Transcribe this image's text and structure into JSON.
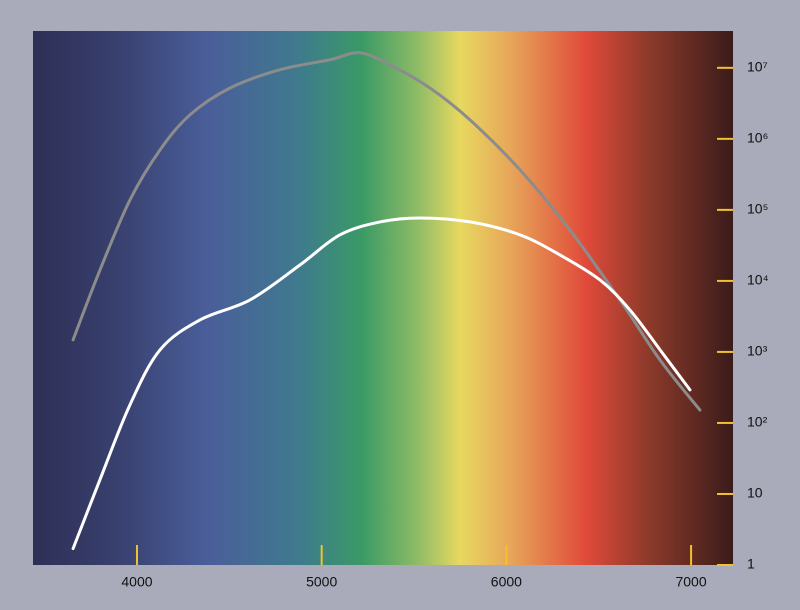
{
  "chart_data": {
    "type": "line",
    "xlim": [
      3437,
      7227
    ],
    "xticks": [
      4000,
      5000,
      6000,
      7000
    ],
    "ylim": [
      1,
      33000000
    ],
    "log_y": true,
    "yticks": [
      1,
      10,
      {
        "value": 100,
        "label": "10²"
      },
      {
        "value": 1000,
        "label": "10³"
      },
      {
        "value": 10000,
        "label": "10⁴"
      },
      {
        "value": 100000,
        "label": "10⁵"
      },
      {
        "value": 1000000,
        "label": "10⁶"
      },
      {
        "value": 10000000,
        "label": "10⁷"
      }
    ],
    "tick_color": "#f2c12e",
    "series": [
      {
        "color": "#8c8c8c",
        "x": [
          3654,
          3800,
          3962,
          4125,
          4287,
          4504,
          4774,
          5045,
          5207,
          5370,
          5586,
          5803,
          6074,
          6344,
          6615,
          6832,
          7048
        ],
        "values": [
          1480,
          14300,
          138000,
          700000,
          2180000,
          5200000,
          9400000,
          13000000,
          16300000,
          11000000,
          5200000,
          1850000,
          366000,
          52000,
          5400,
          770,
          152
        ]
      },
      {
        "color": "#ffffff",
        "x": [
          3654,
          3800,
          3962,
          4125,
          4341,
          4612,
          4883,
          5099,
          5316,
          5532,
          5803,
          6074,
          6290,
          6507,
          6669,
          6832,
          6994
        ],
        "values": [
          1.7,
          16,
          180,
          1070,
          2820,
          5400,
          16800,
          44500,
          67700,
          77000,
          67700,
          44500,
          23200,
          10300,
          3900,
          1070,
          292
        ]
      }
    ]
  }
}
